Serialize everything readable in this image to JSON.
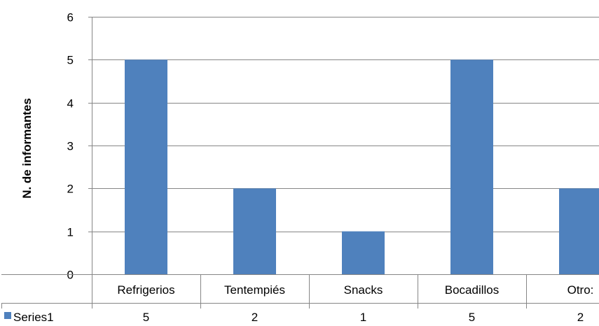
{
  "chart_data": {
    "type": "bar",
    "title": "",
    "ylabel": "N. de informantes",
    "xlabel": "",
    "categories": [
      "Refrigerios",
      "Tentempiés",
      "Snacks",
      "Bocadillos",
      "Otro:"
    ],
    "series": [
      {
        "name": "Series1",
        "values": [
          5,
          2,
          1,
          5,
          2
        ]
      }
    ],
    "ylim": [
      0,
      6
    ],
    "yticks": [
      0,
      1,
      2,
      3,
      4,
      5,
      6
    ],
    "grid": true,
    "legend": "data-table",
    "data_table": true,
    "colors": {
      "bar": "#4f81bd",
      "grid": "#868686",
      "axis": "#868686"
    }
  }
}
